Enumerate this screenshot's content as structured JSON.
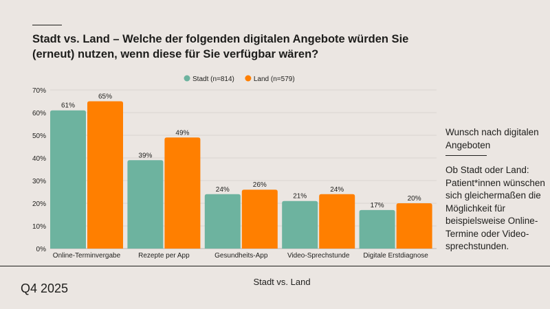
{
  "title": "Stadt vs. Land – Welche der folgenden digitalen Angebote würden Sie (erneut) nutzen, wenn diese für Sie verfügbar wären?",
  "side": {
    "heading": "Wunsch nach digitalen Angeboten",
    "body": "Ob Stadt oder Land: Patient*innen wünschen sich gleichermaßen die Möglichkeit für beispielsweise Online-Termine oder Video-sprechstunden."
  },
  "footer": {
    "period": "Q4 2025",
    "caption": "Stadt vs. Land"
  },
  "chart_data": {
    "type": "bar",
    "categories": [
      "Online-Terminvergabe",
      "Rezepte per App",
      "Gesundheits-App",
      "Video-Sprechstunde",
      "Digitale Erstdiagnose"
    ],
    "series": [
      {
        "name": "Stadt (n=814)",
        "color": "#6db39f",
        "values": [
          61,
          39,
          24,
          21,
          17
        ]
      },
      {
        "name": "Land (n=579)",
        "color": "#ff7f00",
        "values": [
          65,
          49,
          26,
          24,
          20
        ]
      }
    ],
    "ylim": [
      0,
      70
    ],
    "yticks": [
      0,
      10,
      20,
      30,
      40,
      50,
      60,
      70
    ],
    "tick_suffix": "%",
    "grid": true,
    "legend": "top-center"
  }
}
